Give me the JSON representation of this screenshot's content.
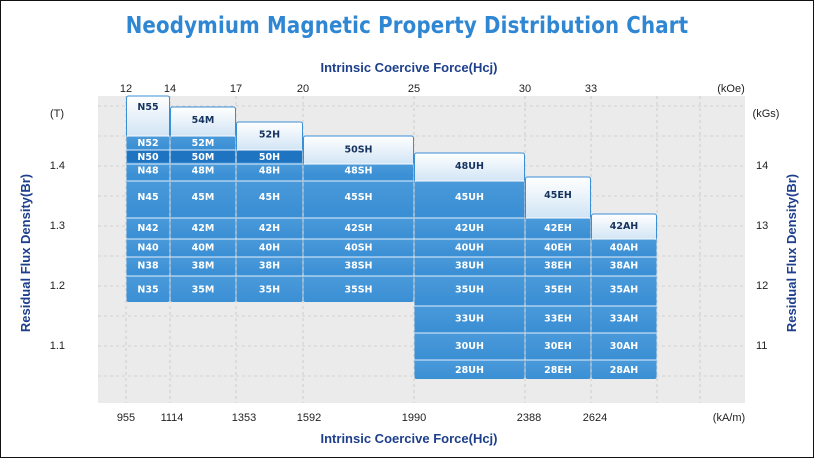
{
  "title": "Neodymium Magnetic Property Distribution Chart",
  "chart_data": {
    "type": "table",
    "title": "Neodymium Magnetic Property Distribution Chart",
    "x_axis_top": {
      "label": "Intrinsic Coercive Force(Hcj)",
      "unit": "(kOe)",
      "ticks": [
        12,
        14,
        17,
        20,
        25,
        30,
        33
      ]
    },
    "x_axis_bottom": {
      "label": "Intrinsic Coercive Force(Hcj)",
      "unit": "(kA/m)",
      "ticks": [
        955,
        1114,
        1353,
        1592,
        1990,
        2388,
        2624
      ]
    },
    "y_axis_left": {
      "label": "Residual Flux Density(Br)",
      "unit": "(T)",
      "ticks": [
        1.4,
        1.3,
        1.2,
        1.1
      ]
    },
    "y_axis_right": {
      "label": "Residual Flux Density(Br)",
      "unit": "(kGs)",
      "ticks": [
        14,
        13,
        12,
        11
      ]
    },
    "grid": true,
    "columns": [
      {
        "name": "N",
        "hcj_kOe": [
          12,
          14
        ],
        "top_grade": "N55",
        "grades": [
          "N52",
          "N50",
          "N48",
          "N45",
          "N42",
          "N40",
          "N38",
          "N35"
        ]
      },
      {
        "name": "M",
        "hcj_kOe": [
          14,
          17
        ],
        "top_grade": "54M",
        "grades": [
          "52M",
          "50M",
          "48M",
          "45M",
          "42M",
          "40M",
          "38M",
          "35M"
        ]
      },
      {
        "name": "H",
        "hcj_kOe": [
          17,
          20
        ],
        "top_grade": "52H",
        "grades": [
          "50H",
          "48H",
          "45H",
          "42H",
          "40H",
          "38H",
          "35H"
        ]
      },
      {
        "name": "SH",
        "hcj_kOe": [
          20,
          25
        ],
        "top_grade": "50SH",
        "grades": [
          "48SH",
          "45SH",
          "42SH",
          "40SH",
          "38SH",
          "35SH"
        ]
      },
      {
        "name": "UH",
        "hcj_kOe": [
          25,
          30
        ],
        "top_grade": "48UH",
        "grades": [
          "45UH",
          "42UH",
          "40UH",
          "38UH",
          "35UH",
          "33UH",
          "30UH",
          "28UH"
        ]
      },
      {
        "name": "EH",
        "hcj_kOe": [
          30,
          33
        ],
        "top_grade": "45EH",
        "grades": [
          "42EH",
          "40EH",
          "38EH",
          "35EH",
          "33EH",
          "30EH",
          "28EH"
        ]
      },
      {
        "name": "AH",
        "hcj_kOe": [
          33,
          36
        ],
        "top_grade": "42AH",
        "grades": [
          "40AH",
          "38AH",
          "35AH",
          "33AH",
          "30AH",
          "28AH"
        ]
      }
    ],
    "colors": {
      "cell": "#3b8fd4",
      "cell_dark": "#1f74c2",
      "cap_top": "#ffffff",
      "cap_bottom": "#cfe3f4",
      "grid_bg": "#ebebeb",
      "grid_line": "#b8b8b8",
      "axis_text": "#1d3f8c"
    }
  }
}
